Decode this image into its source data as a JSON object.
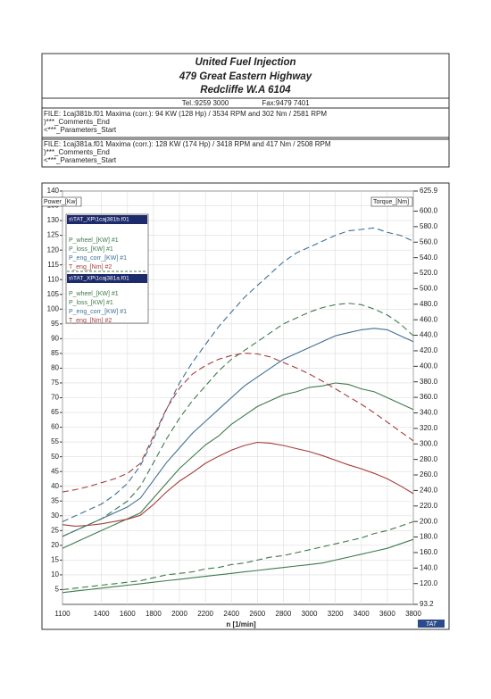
{
  "header": {
    "lines": [
      "United Fuel Injection",
      "479 Great Eastern Highway",
      "Redcliffe W.A 6104"
    ],
    "tel": "Tel.:9259 3000",
    "fax": "Fax:9479 7401"
  },
  "files": [
    {
      "line": "FILE: 1caj381b.f01  Maxima (corr.):  94 KW (128 Hp) /  3534 RPM  and   302 Nm /  2581 RPM",
      "comments": ")***_Comments_End",
      "params": "<***_Parameters_Start"
    },
    {
      "line": "FILE: 1caj381a.f01  Maxima (corr.):  128 KW (174 Hp) /  3418 RPM  and   417 Nm /  2508 RPM",
      "comments": ")***_Comments_End",
      "params": "<***_Parameters_Start"
    }
  ],
  "chart_data": {
    "type": "line",
    "y_label": "Power_[Kw]",
    "y2_label": "Torque_[Nm]",
    "x_label": "n  [1/min]",
    "brand": "TAT",
    "legend_files": [
      "s\\TAT_XP\\1caj381b.f01",
      "s\\TAT_XP\\1caj381a.f01"
    ],
    "xlim": [
      1100,
      3800
    ],
    "xticks": [
      1100,
      1400,
      1600,
      1800,
      2000,
      2200,
      2400,
      2600,
      2800,
      3000,
      3200,
      3400,
      3600,
      3800
    ],
    "ylim": [
      0,
      140
    ],
    "yticks": [
      5,
      10,
      15,
      20,
      25,
      30,
      35,
      40,
      45,
      50,
      55,
      60,
      65,
      70,
      75,
      80,
      85,
      90,
      95,
      100,
      105,
      110,
      115,
      120,
      125,
      130,
      135,
      140
    ],
    "y2lim": [
      93.2,
      625.9
    ],
    "y2ticks": [
      93.2,
      {
        "value": 120,
        "label": "120.0"
      },
      {
        "value": 140,
        "label": "140.0"
      },
      {
        "value": 160,
        "label": "160.0"
      },
      {
        "value": 180,
        "label": "180.0"
      },
      {
        "value": 200,
        "label": "200.0"
      },
      {
        "value": 220,
        "label": "220.0"
      },
      {
        "value": 240,
        "label": "240.0"
      },
      {
        "value": 260,
        "label": "260.0"
      },
      {
        "value": 280,
        "label": "280.0"
      },
      {
        "value": 300,
        "label": "300.0"
      },
      {
        "value": 320,
        "label": "320.0"
      },
      {
        "value": 340,
        "label": "340.0"
      },
      {
        "value": 360,
        "label": "360.0"
      },
      {
        "value": 380,
        "label": "380.0"
      },
      {
        "value": 400,
        "label": "400.0"
      },
      {
        "value": 420,
        "label": "420.0"
      },
      {
        "value": 440,
        "label": "440.0"
      },
      {
        "value": 460,
        "label": "460.0"
      },
      {
        "value": 480,
        "label": "480.0"
      },
      {
        "value": 500,
        "label": "500.0"
      },
      {
        "value": 520,
        "label": "520.0"
      },
      {
        "value": 540,
        "label": "540.0"
      },
      {
        "value": 560,
        "label": "560.0"
      },
      {
        "value": 580,
        "label": "580.0"
      },
      {
        "value": 600,
        "label": "600.0"
      },
      625.9
    ],
    "grid": true,
    "x": [
      1100,
      1200,
      1300,
      1400,
      1500,
      1600,
      1700,
      1800,
      1900,
      2000,
      2100,
      2200,
      2300,
      2400,
      2500,
      2600,
      2700,
      2800,
      2900,
      3000,
      3100,
      3200,
      3300,
      3400,
      3500,
      3600,
      3700,
      3800
    ],
    "series": [
      {
        "name": "P_wheel_[KW] #1",
        "color": "#3d7a4c",
        "style": "solid",
        "values": [
          19,
          21,
          23,
          25,
          27,
          29,
          31,
          36,
          41,
          46,
          50,
          54,
          57,
          61,
          64,
          67,
          69,
          71,
          72,
          73.5,
          74,
          75,
          74.5,
          73,
          72,
          70,
          68,
          66
        ]
      },
      {
        "name": "P_loss_[KW] #1",
        "color": "#3d7a4c",
        "style": "solid",
        "values": [
          4,
          4.5,
          5,
          5.5,
          6,
          6.5,
          7,
          7.5,
          8,
          8.5,
          9,
          9.5,
          10,
          10.5,
          11,
          11.5,
          12,
          12.5,
          13,
          13.5,
          14,
          15,
          16,
          17,
          18,
          19,
          20.5,
          22
        ]
      },
      {
        "name": "P_eng_corr_[KW] #1",
        "color": "#3f6f97",
        "style": "solid",
        "values": [
          23,
          25,
          27,
          29,
          31,
          33,
          36,
          42,
          48,
          53,
          58,
          62,
          66,
          70,
          74,
          77,
          80,
          83,
          85,
          87,
          89,
          91,
          92,
          93,
          93.5,
          93,
          91,
          89
        ]
      },
      {
        "name": "T_eng_[Nm] #2",
        "color": "#a63a3a",
        "style": "solid",
        "axis": "y2",
        "values": [
          196,
          194,
          195,
          197,
          200,
          203,
          208,
          222,
          238,
          252,
          263,
          275,
          284,
          292,
          298,
          302,
          301,
          298,
          294,
          290,
          285,
          279,
          273,
          268,
          262,
          255,
          246,
          236
        ]
      },
      {
        "name": "P_wheel_[KW] #1",
        "color": "#3d7a4c",
        "style": "dashed",
        "values": [
          23,
          25,
          27,
          29,
          32,
          35,
          40,
          48,
          56,
          63,
          69,
          74,
          79,
          83,
          86,
          89,
          92,
          95,
          97,
          99,
          100.5,
          101.5,
          102,
          101.5,
          100,
          98,
          95,
          91
        ]
      },
      {
        "name": "P_loss_[KW] #1",
        "color": "#3d7a4c",
        "style": "dashed",
        "values": [
          5,
          5.5,
          6,
          6.5,
          7,
          7.5,
          8,
          9,
          10,
          10.5,
          11,
          12,
          12.5,
          13.5,
          14,
          15,
          16,
          16.5,
          17.5,
          18.5,
          19.5,
          20.5,
          21.5,
          22.5,
          24,
          25,
          26.5,
          28
        ]
      },
      {
        "name": "P_eng_corr_[KW] #1",
        "color": "#3f6f97",
        "style": "dashed",
        "values": [
          28,
          30,
          32,
          34,
          37,
          41,
          47,
          56,
          66,
          75,
          82,
          88,
          94,
          99,
          104,
          108,
          112,
          116,
          119,
          121,
          123,
          125,
          126.5,
          127,
          127.5,
          126,
          125,
          123
        ]
      },
      {
        "name": "T_eng_[Nm] #2",
        "color": "#a63a3a",
        "style": "dashed",
        "axis": "y2",
        "values": [
          238,
          241,
          245,
          250,
          255,
          262,
          275,
          310,
          345,
          372,
          390,
          401,
          409,
          414,
          417,
          416,
          412,
          405,
          398,
          390,
          381,
          371,
          361,
          351,
          340,
          328,
          316,
          304
        ]
      }
    ]
  }
}
